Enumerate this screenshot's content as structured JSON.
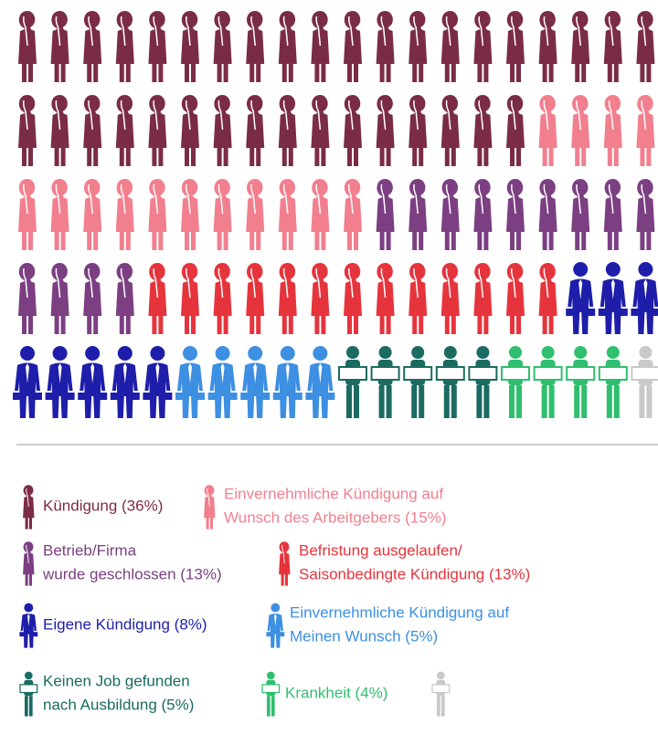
{
  "chart_data": {
    "type": "pictogram",
    "categories": [
      [
        "Kündigung (36%)"
      ],
      [
        "Einvernehmliche  Kündigung  auf",
        "Wunsch des  Arbeitgebers  (15%)"
      ],
      [
        "Betrieb/Firma",
        "wurde geschlossen  (13%)"
      ],
      [
        "Befristung ausgelaufen/",
        "Saisonbedingte  Kündigung  (13%)"
      ],
      [
        "Eigene Kündigung  (8%)"
      ],
      [
        "Einvernehmliche  Kündigung  auf",
        "Meinen Wunsch (5%)"
      ],
      [
        "Keinen  Job  gefunden",
        "nach Ausbildung  (5%)"
      ],
      [
        "Krankheit  (4%)"
      ],
      null
    ],
    "values": [
      36,
      15,
      13,
      13,
      8,
      5,
      5,
      4,
      1
    ],
    "colors": [
      "#7b2c45",
      "#f27f8e",
      "#7b3f82",
      "#e6343c",
      "#1e1eaa",
      "#3d8fe2",
      "#1b6b62",
      "#2fbf6e",
      "#c9c9c9"
    ],
    "icons": [
      "figure",
      "figure",
      "figure",
      "figure",
      "business",
      "business",
      "jobless",
      "jobless",
      "jobless"
    ]
  }
}
